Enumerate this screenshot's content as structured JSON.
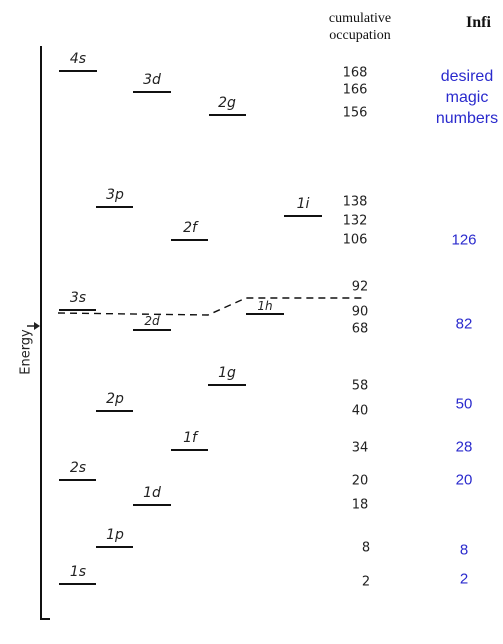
{
  "header": {
    "occupation_line1": "cumulative",
    "occupation_line2": "occupation",
    "inf_text": "Infi",
    "magic_line1": "desired",
    "magic_line2": "magic",
    "magic_line3": "numbers"
  },
  "axis": {
    "label": "Energy"
  },
  "levels": [
    {
      "label": "4s"
    },
    {
      "label": "3d"
    },
    {
      "label": "2g"
    },
    {
      "label": "3p"
    },
    {
      "label": "2f"
    },
    {
      "label": "1i"
    },
    {
      "label": "3s"
    },
    {
      "label": "2d"
    },
    {
      "label": "1h"
    },
    {
      "label": "1g"
    },
    {
      "label": "2p"
    },
    {
      "label": "1f"
    },
    {
      "label": "2s"
    },
    {
      "label": "1d"
    },
    {
      "label": "1p"
    },
    {
      "label": "1s"
    }
  ],
  "occupation_numbers": [
    "168",
    "166",
    "156",
    "138",
    "132",
    "106",
    "92",
    "90",
    "68",
    "58",
    "40",
    "34",
    "20",
    "18",
    "8",
    "2"
  ],
  "magic_numbers": [
    "126",
    "82",
    "50",
    "28",
    "20",
    "8",
    "2"
  ],
  "colors": {
    "magic": "#2a2acd",
    "lines": "#111111"
  }
}
